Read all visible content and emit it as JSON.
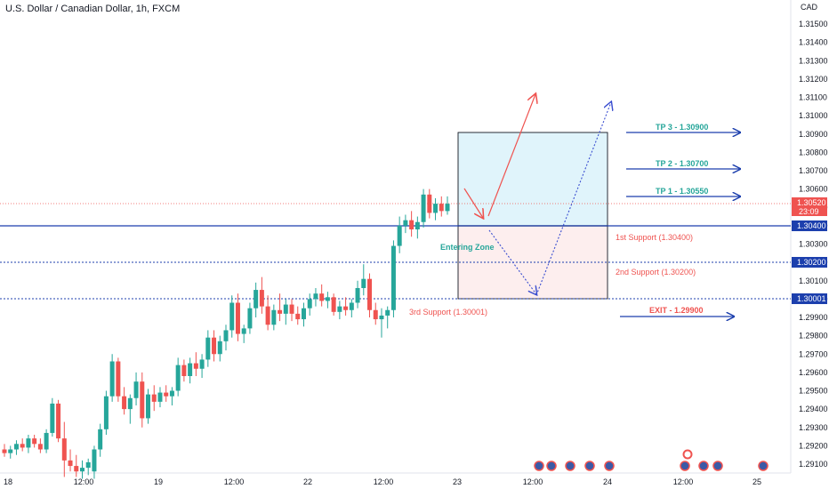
{
  "chart_data": {
    "type": "candlestick",
    "title": "U.S. Dollar / Canadian Dollar, 1h, FXCM",
    "currency": "CAD",
    "colors": {
      "up": "#26a69a",
      "down": "#ef5350",
      "annotation_blue": "#1c3fad",
      "tp_text": "#26a69a",
      "support_text": "#ef5350",
      "zone_top": "#e0f4fb",
      "zone_bottom": "#fdeeee"
    },
    "y_ticks": [
      1.315,
      1.314,
      1.313,
      1.312,
      1.311,
      1.31,
      1.309,
      1.308,
      1.307,
      1.306,
      1.305,
      1.304,
      1.303,
      1.302,
      1.301,
      1.3,
      1.299,
      1.298,
      1.297,
      1.296,
      1.295,
      1.294,
      1.293,
      1.292,
      1.291
    ],
    "y_tick_labels": [
      "1.31500",
      "1.31400",
      "1.31300",
      "1.31200",
      "1.31100",
      "1.31000",
      "1.30900",
      "1.30800",
      "1.30700",
      "1.30600",
      "1.30500",
      "1.30400",
      "1.30300",
      "1.30200",
      "1.30100",
      "1.30000",
      "1.29900",
      "1.29800",
      "1.29700",
      "1.29600",
      "1.29500",
      "1.29400",
      "1.29300",
      "1.29200",
      "1.29100"
    ],
    "ylim": [
      1.2905,
      1.3155
    ],
    "x_labels": [
      "18",
      "12:00",
      "19",
      "12:00",
      "22",
      "12:00",
      "23",
      "12:00",
      "24",
      "12:00",
      "25"
    ],
    "price_labels": {
      "current": "1.30520",
      "countdown": "23:09",
      "level_1": "1.30400",
      "level_2": "1.30200",
      "level_3": "1.30001"
    },
    "levels": {
      "support_1": 1.304,
      "support_2": 1.302,
      "support_3": 1.30001,
      "current": 1.3052,
      "zone_top": 1.3091,
      "zone_bottom": 1.3
    },
    "annotations": {
      "tp3": "TP 3 - 1.30900",
      "tp2": "TP 2 - 1.30700",
      "tp1": "TP 1 - 1.30550",
      "exit": "EXIT - 1.29900",
      "support1": "1st Support (1.30400)",
      "support2": "2nd Support (1.30200)",
      "support3": "3rd Support (1.30001)",
      "entering_zone": "Entering Zone"
    },
    "candles": [
      [
        1.2918,
        1.2921,
        1.2914,
        1.2916
      ],
      [
        1.2916,
        1.292,
        1.2913,
        1.2918
      ],
      [
        1.2918,
        1.2923,
        1.2915,
        1.2921
      ],
      [
        1.2921,
        1.2924,
        1.2917,
        1.2919
      ],
      [
        1.2919,
        1.2926,
        1.2916,
        1.2924
      ],
      [
        1.2924,
        1.2926,
        1.2919,
        1.2921
      ],
      [
        1.2921,
        1.2924,
        1.2916,
        1.2918
      ],
      [
        1.2918,
        1.2929,
        1.2916,
        1.2927
      ],
      [
        1.2927,
        1.2946,
        1.2925,
        1.2943
      ],
      [
        1.2943,
        1.2945,
        1.2922,
        1.2924
      ],
      [
        1.2924,
        1.2933,
        1.2903,
        1.2912
      ],
      [
        1.2912,
        1.2918,
        1.2906,
        1.2909
      ],
      [
        1.2909,
        1.2915,
        1.2903,
        1.2906
      ],
      [
        1.2906,
        1.2912,
        1.2902,
        1.2908
      ],
      [
        1.2908,
        1.2913,
        1.2904,
        1.2911
      ],
      [
        1.2906,
        1.292,
        1.2902,
        1.2918
      ],
      [
        1.2918,
        1.2932,
        1.2914,
        1.2929
      ],
      [
        1.2929,
        1.295,
        1.2926,
        1.2947
      ],
      [
        1.2947,
        1.297,
        1.2944,
        1.2966
      ],
      [
        1.2966,
        1.2968,
        1.2944,
        1.2947
      ],
      [
        1.2947,
        1.2952,
        1.2937,
        1.294
      ],
      [
        1.294,
        1.2948,
        1.2932,
        1.2946
      ],
      [
        1.2946,
        1.296,
        1.2942,
        1.2955
      ],
      [
        1.2955,
        1.296,
        1.293,
        1.2935
      ],
      [
        1.2935,
        1.2951,
        1.2932,
        1.2948
      ],
      [
        1.2948,
        1.2953,
        1.2939,
        1.2944
      ],
      [
        1.2944,
        1.2952,
        1.2941,
        1.2949
      ],
      [
        1.2949,
        1.2953,
        1.2944,
        1.2947
      ],
      [
        1.2947,
        1.2952,
        1.2942,
        1.295
      ],
      [
        1.295,
        1.2968,
        1.2947,
        1.2964
      ],
      [
        1.2964,
        1.2967,
        1.2955,
        1.2958
      ],
      [
        1.2958,
        1.2968,
        1.2954,
        1.2965
      ],
      [
        1.2965,
        1.2971,
        1.2958,
        1.2962
      ],
      [
        1.2962,
        1.297,
        1.2957,
        1.2967
      ],
      [
        1.2967,
        1.2983,
        1.2963,
        1.2979
      ],
      [
        1.2979,
        1.2983,
        1.2966,
        1.297
      ],
      [
        1.297,
        1.298,
        1.2966,
        1.2977
      ],
      [
        1.2977,
        1.2986,
        1.2972,
        1.2983
      ],
      [
        1.2983,
        1.3002,
        1.2979,
        1.2998
      ],
      [
        1.2998,
        1.3003,
        1.2977,
        1.2981
      ],
      [
        1.2981,
        1.2986,
        1.2976,
        1.2984
      ],
      [
        1.2984,
        1.2998,
        1.2981,
        1.2995
      ],
      [
        1.2995,
        1.3009,
        1.299,
        1.3005
      ],
      [
        1.3005,
        1.3012,
        1.2992,
        1.2996
      ],
      [
        1.2996,
        1.3002,
        1.2983,
        1.2986
      ],
      [
        1.2986,
        1.2997,
        1.2983,
        1.2994
      ],
      [
        1.2994,
        1.3003,
        1.2988,
        1.2992
      ],
      [
        1.2992,
        1.3,
        1.2986,
        1.2997
      ],
      [
        1.2997,
        1.3,
        1.2988,
        1.2992
      ],
      [
        1.2992,
        1.2996,
        1.2986,
        1.2989
      ],
      [
        1.2989,
        1.2998,
        1.2985,
        1.2995
      ],
      [
        1.2995,
        1.3003,
        1.2991,
        1.3
      ],
      [
        1.3,
        1.3006,
        1.2996,
        1.3003
      ],
      [
        1.3003,
        1.3008,
        1.2996,
        1.2999
      ],
      [
        1.2999,
        1.3004,
        1.2995,
        1.3001
      ],
      [
        1.3001,
        1.3003,
        1.2991,
        1.2993
      ],
      [
        1.2993,
        1.2999,
        1.2989,
        1.2996
      ],
      [
        1.2996,
        1.3001,
        1.2991,
        1.2994
      ],
      [
        1.2994,
        1.3,
        1.299,
        1.2998
      ],
      [
        1.2998,
        1.301,
        1.2995,
        1.3006
      ],
      [
        1.3006,
        1.3019,
        1.3002,
        1.3011
      ],
      [
        1.3011,
        1.3014,
        1.299,
        1.2994
      ],
      [
        1.2994,
        1.2998,
        1.2986,
        1.2989
      ],
      [
        1.2989,
        1.2995,
        1.2979,
        1.2991
      ],
      [
        1.2991,
        1.2996,
        1.2984,
        1.2994
      ],
      [
        1.2994,
        1.3032,
        1.299,
        1.3029
      ],
      [
        1.3029,
        1.3045,
        1.3025,
        1.304
      ],
      [
        1.304,
        1.3046,
        1.3036,
        1.3043
      ],
      [
        1.3043,
        1.3048,
        1.3034,
        1.3038
      ],
      [
        1.3038,
        1.3045,
        1.3033,
        1.3042
      ],
      [
        1.3042,
        1.306,
        1.3039,
        1.3057
      ],
      [
        1.3057,
        1.306,
        1.3044,
        1.3047
      ],
      [
        1.3047,
        1.3055,
        1.3043,
        1.3052
      ],
      [
        1.3052,
        1.3056,
        1.3045,
        1.3048
      ],
      [
        1.3048,
        1.3056,
        1.3046,
        1.3052
      ]
    ]
  }
}
